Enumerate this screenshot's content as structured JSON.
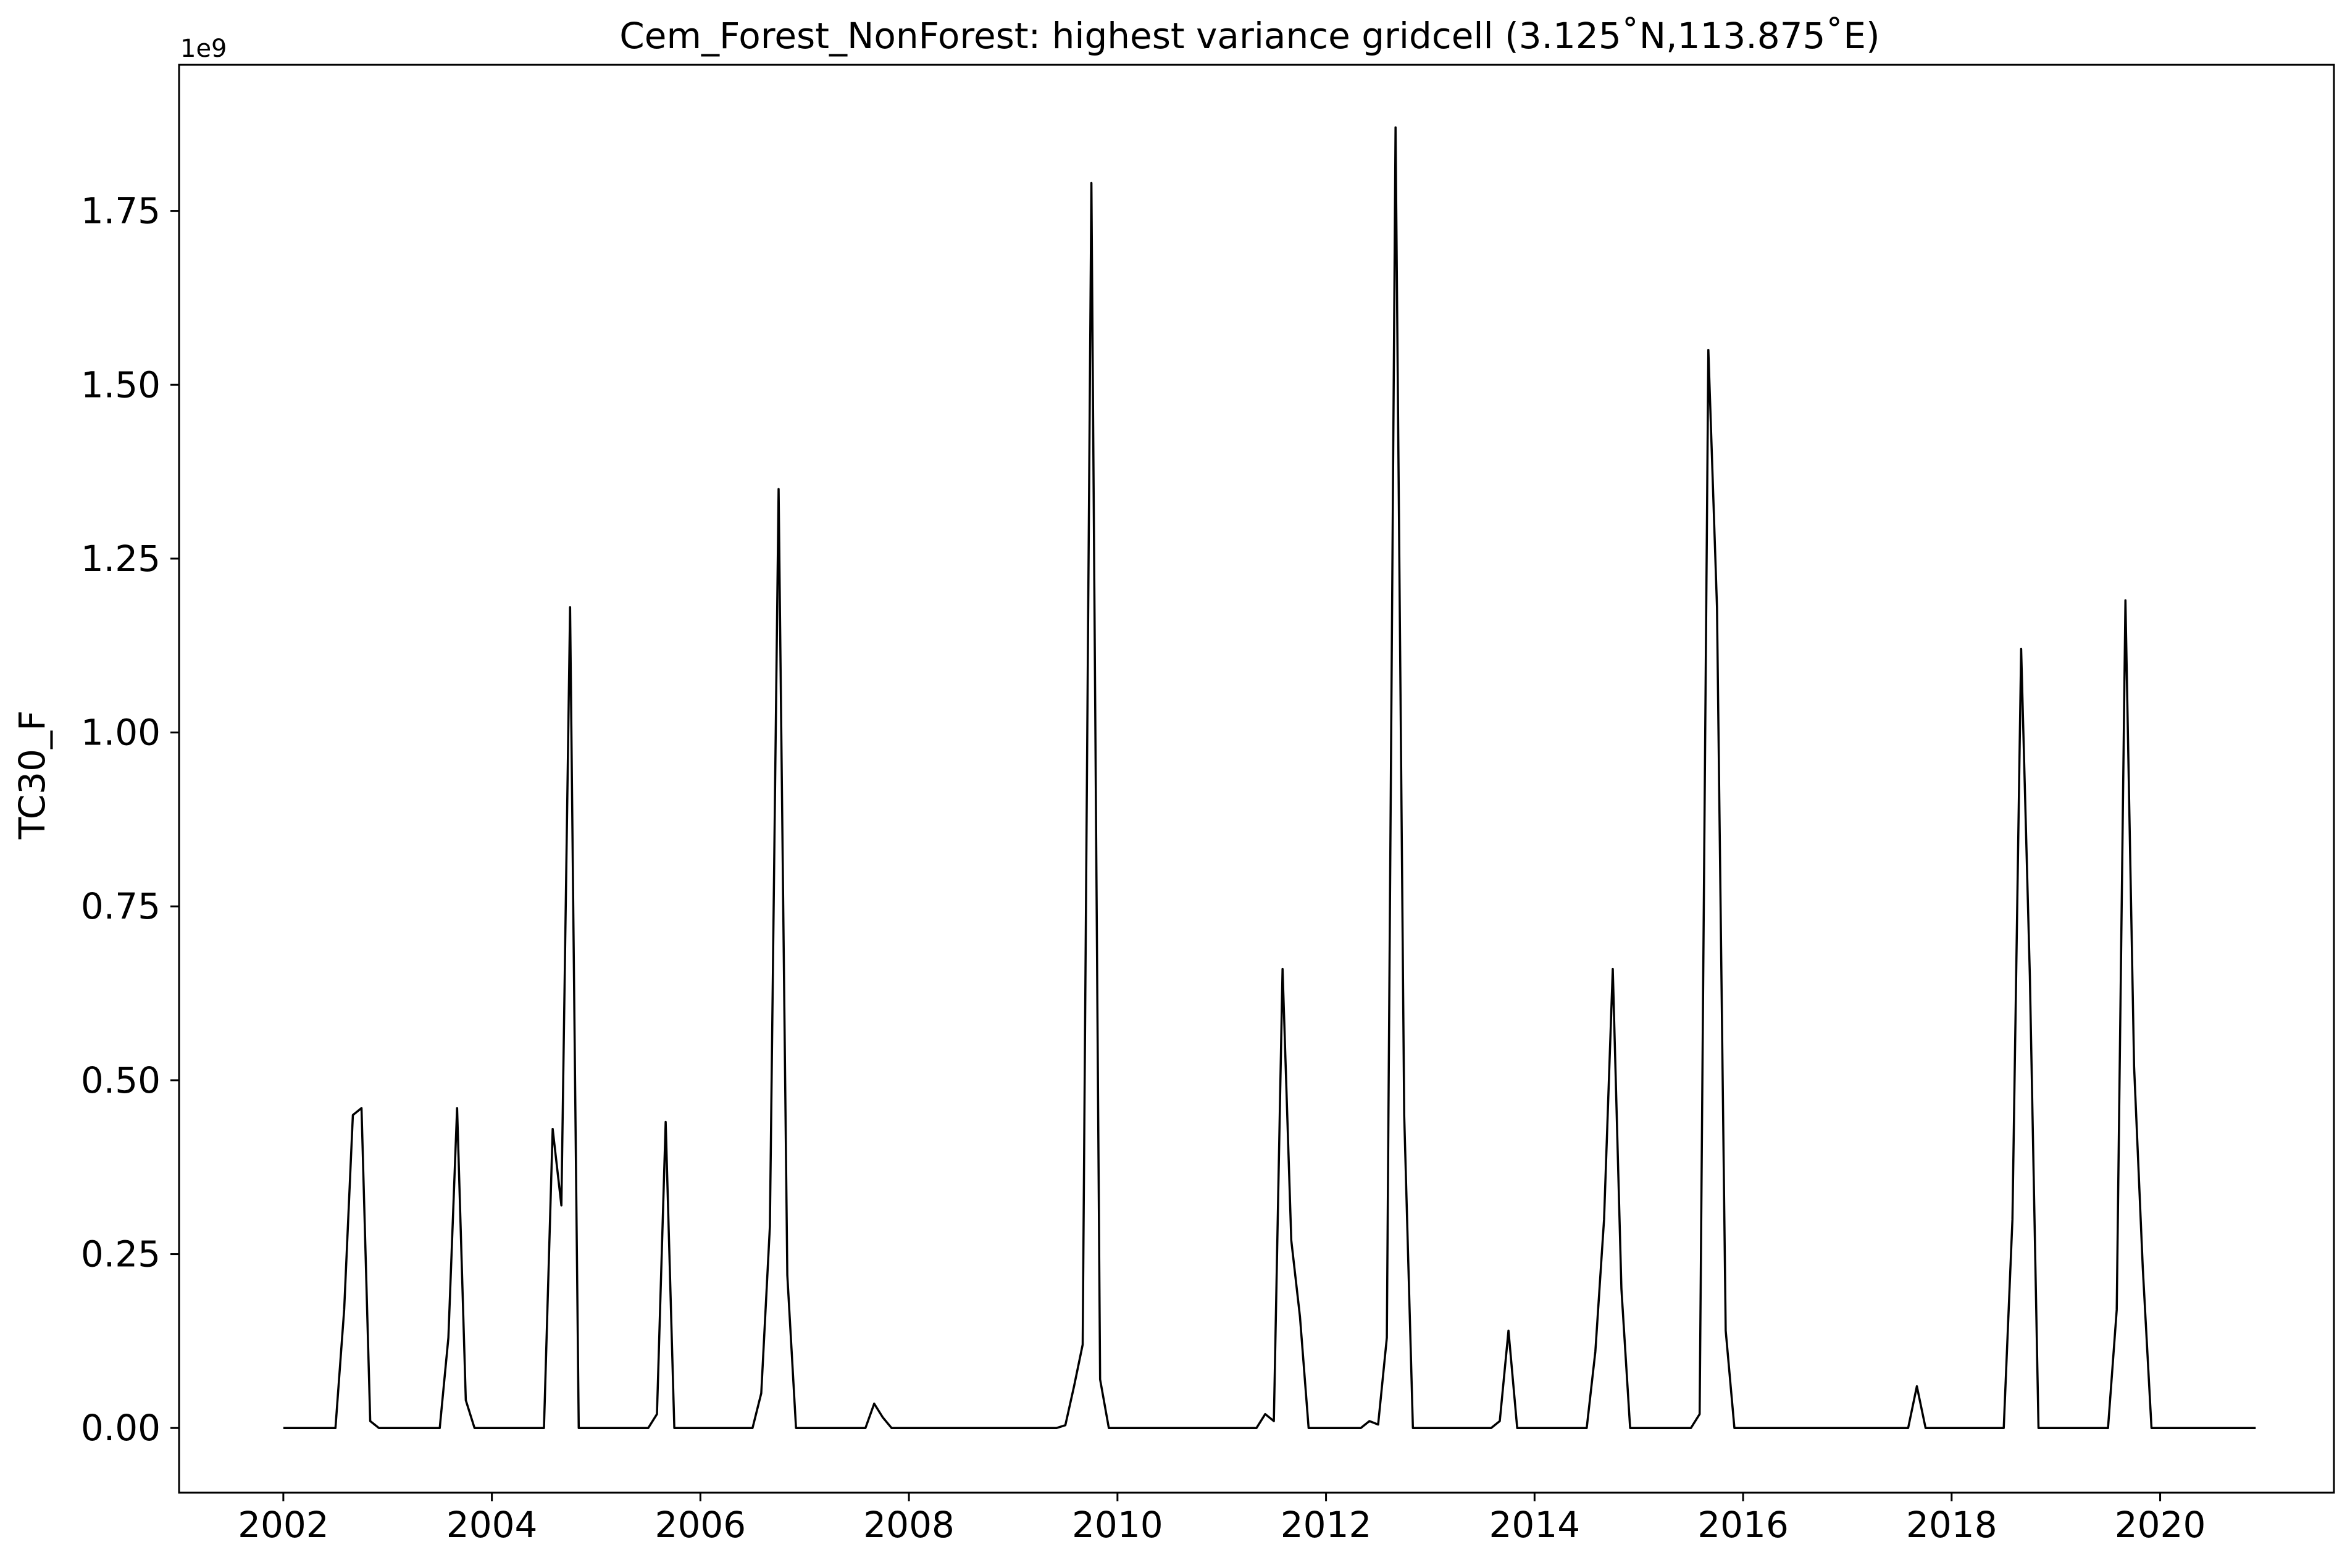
{
  "chart_data": {
    "type": "line",
    "title": "Cem_Forest_NonForest: highest variance gridcell (3.125˚N,113.875˚E)",
    "xlabel": "",
    "ylabel": "TC30_F",
    "y_offset_label": "1e9",
    "y_scale": 1000000000,
    "xlim": [
      "2001-01-01",
      "2021-09-01"
    ],
    "ylim": [
      -0.093,
      1.96
    ],
    "x_ticks": [
      "2002",
      "2004",
      "2006",
      "2008",
      "2010",
      "2012",
      "2014",
      "2016",
      "2018",
      "2020"
    ],
    "y_ticks": [
      "0.00",
      "0.25",
      "0.50",
      "0.75",
      "1.00",
      "1.25",
      "1.50",
      "1.75"
    ],
    "grid": false,
    "legend": "none",
    "line_color": "#000000",
    "series": [
      {
        "points": [
          [
            "2002-01",
            0
          ],
          [
            "2002-07",
            0
          ],
          [
            "2002-08",
            0.17
          ],
          [
            "2002-09",
            0.45
          ],
          [
            "2002-10",
            0.46
          ],
          [
            "2002-11",
            0.01
          ],
          [
            "2002-12",
            0
          ],
          [
            "2003-07",
            0
          ],
          [
            "2003-08",
            0.13
          ],
          [
            "2003-09",
            0.46
          ],
          [
            "2003-10",
            0.04
          ],
          [
            "2003-11",
            0
          ],
          [
            "2004-07",
            0
          ],
          [
            "2004-08",
            0.43
          ],
          [
            "2004-09",
            0.32
          ],
          [
            "2004-10",
            1.18
          ],
          [
            "2004-11",
            0
          ],
          [
            "2005-07",
            0
          ],
          [
            "2005-08",
            0.02
          ],
          [
            "2005-09",
            0.44
          ],
          [
            "2005-10",
            0
          ],
          [
            "2006-07",
            0
          ],
          [
            "2006-08",
            0.05
          ],
          [
            "2006-09",
            0.29
          ],
          [
            "2006-10",
            1.35
          ],
          [
            "2006-11",
            0.22
          ],
          [
            "2006-12",
            0
          ],
          [
            "2007-08",
            0
          ],
          [
            "2007-09",
            0.035
          ],
          [
            "2007-10",
            0.015
          ],
          [
            "2007-11",
            0
          ],
          [
            "2009-06",
            0
          ],
          [
            "2009-07",
            0.004
          ],
          [
            "2009-08",
            0.06
          ],
          [
            "2009-09",
            0.12
          ],
          [
            "2009-10",
            1.79
          ],
          [
            "2009-11",
            0.07
          ],
          [
            "2009-12",
            0
          ],
          [
            "2011-05",
            0
          ],
          [
            "2011-06",
            0.02
          ],
          [
            "2011-07",
            0.01
          ],
          [
            "2011-08",
            0.66
          ],
          [
            "2011-09",
            0.27
          ],
          [
            "2011-10",
            0.16
          ],
          [
            "2011-11",
            0
          ],
          [
            "2012-05",
            0
          ],
          [
            "2012-06",
            0.01
          ],
          [
            "2012-07",
            0.005
          ],
          [
            "2012-08",
            0.13
          ],
          [
            "2012-09",
            1.87
          ],
          [
            "2012-10",
            0.45
          ],
          [
            "2012-11",
            0
          ],
          [
            "2013-08",
            0
          ],
          [
            "2013-09",
            0.01
          ],
          [
            "2013-10",
            0.14
          ],
          [
            "2013-11",
            0
          ],
          [
            "2014-07",
            0
          ],
          [
            "2014-08",
            0.11
          ],
          [
            "2014-09",
            0.3
          ],
          [
            "2014-10",
            0.66
          ],
          [
            "2014-11",
            0.2
          ],
          [
            "2014-12",
            0
          ],
          [
            "2015-07",
            0
          ],
          [
            "2015-08",
            0.02
          ],
          [
            "2015-09",
            1.55
          ],
          [
            "2015-10",
            1.18
          ],
          [
            "2015-11",
            0.14
          ],
          [
            "2015-12",
            0
          ],
          [
            "2017-08",
            0
          ],
          [
            "2017-09",
            0.06
          ],
          [
            "2017-10",
            0
          ],
          [
            "2018-07",
            0
          ],
          [
            "2018-08",
            0.3
          ],
          [
            "2018-09",
            1.12
          ],
          [
            "2018-10",
            0.65
          ],
          [
            "2018-11",
            0
          ],
          [
            "2019-07",
            0
          ],
          [
            "2019-08",
            0.17
          ],
          [
            "2019-09",
            1.19
          ],
          [
            "2019-10",
            0.52
          ],
          [
            "2019-11",
            0.23
          ],
          [
            "2019-12",
            0
          ],
          [
            "2020-12",
            0
          ]
        ]
      }
    ]
  }
}
